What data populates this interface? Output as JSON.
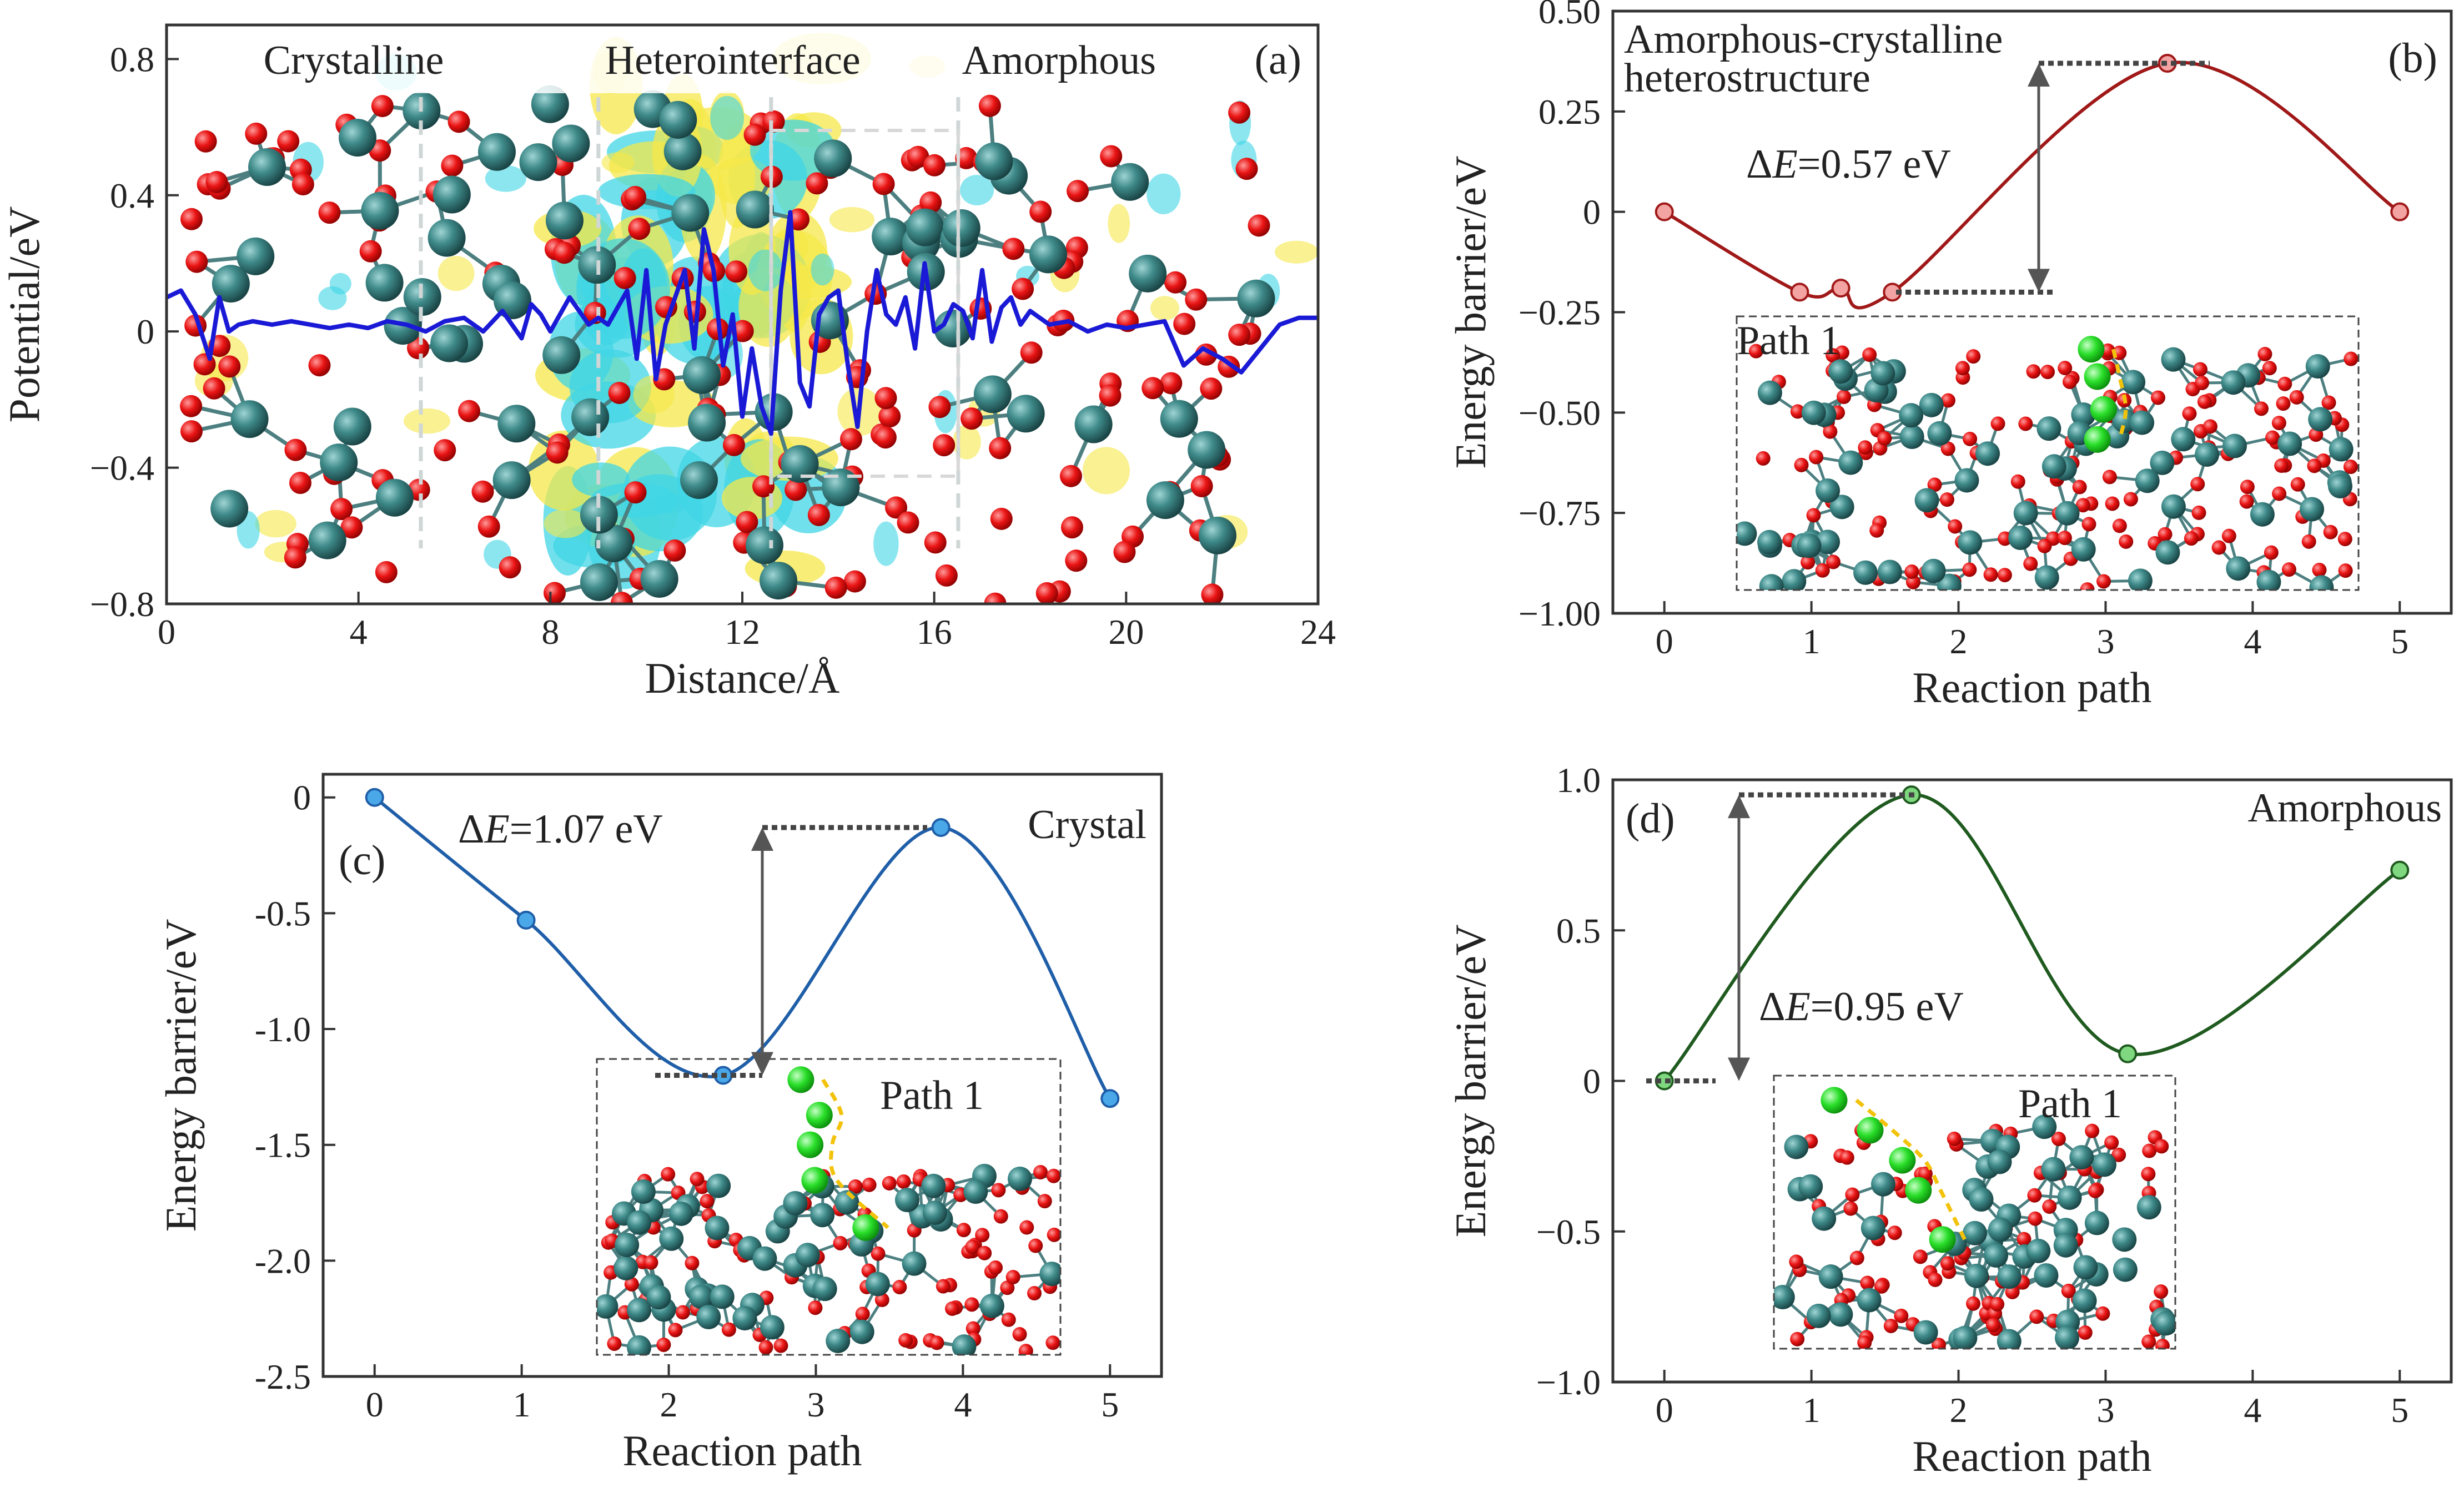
{
  "panels": [
    {
      "id": "a",
      "label": "(a)",
      "type": "line",
      "xlabel": "Distance/Å",
      "ylabel": "Potential/eV",
      "xlim": [
        0,
        24
      ],
      "ylim": [
        -0.8,
        0.9
      ],
      "xticks": [
        0,
        4,
        8,
        12,
        16,
        20,
        24
      ],
      "yticks": [
        0.8,
        0.4,
        0,
        -0.4,
        -0.8
      ],
      "ytick_labels": [
        "0.8",
        "0.4",
        "0",
        "−0.4",
        "−0.8"
      ],
      "region_labels": [
        "Crystalline",
        "Heterointerface",
        "Amorphous"
      ],
      "region_dividers": [
        5.3,
        9.0,
        12.6,
        16.5
      ],
      "series_color": "#1a1ad6",
      "x": [
        0,
        0.3,
        0.6,
        0.9,
        1.1,
        1.3,
        1.5,
        1.8,
        2.2,
        2.6,
        3.0,
        3.4,
        3.8,
        4.2,
        4.6,
        5.0,
        5.4,
        5.8,
        6.2,
        6.6,
        7.0,
        7.2,
        7.4,
        7.6,
        7.8,
        8.0,
        8.2,
        8.4,
        8.6,
        8.8,
        9.0,
        9.2,
        9.4,
        9.6,
        9.8,
        10.0,
        10.2,
        10.4,
        10.6,
        10.8,
        11.0,
        11.2,
        11.4,
        11.6,
        11.8,
        12.0,
        12.2,
        12.4,
        12.6,
        12.8,
        13.0,
        13.2,
        13.4,
        13.6,
        13.8,
        14.0,
        14.2,
        14.4,
        14.6,
        14.8,
        15.0,
        15.2,
        15.4,
        15.6,
        15.8,
        16.0,
        16.2,
        16.4,
        16.6,
        16.8,
        17.0,
        17.2,
        17.4,
        17.6,
        17.8,
        18.0,
        18.4,
        18.8,
        19.2,
        19.6,
        20.0,
        20.4,
        20.8,
        21.2,
        21.6,
        22.0,
        22.4,
        22.8,
        23.2,
        23.6,
        24.0
      ],
      "y": [
        0.1,
        0.12,
        0.05,
        -0.08,
        0.1,
        0.0,
        0.02,
        0.03,
        0.02,
        0.03,
        0.02,
        0.01,
        0.02,
        0.01,
        0.03,
        0.02,
        0.0,
        0.03,
        0.04,
        0.0,
        0.06,
        0.02,
        -0.02,
        0.08,
        0.05,
        0.0,
        0.05,
        0.1,
        0.06,
        0.02,
        0.04,
        0.02,
        0.07,
        0.12,
        -0.08,
        0.18,
        -0.14,
        0.02,
        0.1,
        0.18,
        -0.05,
        0.3,
        0.18,
        -0.1,
        0.05,
        -0.25,
        -0.05,
        -0.22,
        -0.3,
        0.12,
        0.35,
        -0.15,
        -0.22,
        0.05,
        0.1,
        0.12,
        -0.1,
        -0.28,
        0.0,
        0.18,
        0.05,
        0.02,
        0.1,
        -0.05,
        0.2,
        0.0,
        0.02,
        0.08,
        0.06,
        -0.02,
        0.18,
        -0.03,
        0.07,
        0.1,
        0.02,
        0.06,
        0.02,
        0.03,
        0.0,
        0.02,
        0.01,
        0.02,
        0.03,
        -0.1,
        -0.05,
        -0.08,
        -0.12,
        -0.05,
        0.02,
        0.04,
        0.04
      ]
    },
    {
      "id": "b",
      "label": "(b)",
      "type": "line",
      "xlabel": "Reaction path",
      "ylabel": "Energy barrier/eV",
      "xlim": [
        -0.35,
        5.35
      ],
      "ylim": [
        -1.0,
        0.5
      ],
      "xticks": [
        0,
        1,
        2,
        3,
        4,
        5
      ],
      "yticks": [
        0.5,
        0.25,
        0,
        -0.25,
        -0.5,
        -0.75,
        -1.0
      ],
      "ytick_labels": [
        "0.50",
        "0.25",
        "0",
        "−0.25",
        "−0.50",
        "−0.75",
        "−1.00"
      ],
      "legend": "Amorphous-crystalline heterostructure",
      "legend_lines": [
        "Amorphous-crystalline",
        "heterostructure"
      ],
      "delta_e": "0.57 eV",
      "inset_label": "Path 1",
      "series_color": "#a01818",
      "point_color": "#f4a3a3",
      "points_x": [
        0,
        0.92,
        1.2,
        1.55,
        3.42,
        5.0
      ],
      "points_y": [
        0.0,
        -0.2,
        -0.19,
        -0.2,
        0.37,
        0.0
      ],
      "barrier_low": -0.2,
      "barrier_high": 0.37
    },
    {
      "id": "c",
      "label": "(c)",
      "type": "line",
      "xlabel": "Reaction path",
      "ylabel": "Energy barrier/eV",
      "xlim": [
        -0.35,
        5.35
      ],
      "ylim": [
        -2.5,
        0.1
      ],
      "xticks": [
        0,
        1,
        2,
        3,
        4,
        5
      ],
      "yticks": [
        0,
        -0.5,
        -1.0,
        -1.5,
        -2.0,
        -2.5
      ],
      "ytick_labels": [
        "0",
        "-0.5",
        "-1.0",
        "-1.5",
        "-2.0",
        "-2.5"
      ],
      "legend": "Crystal",
      "delta_e": "1.07 eV",
      "inset_label": "Path 1",
      "series_color": "#1f5ea8",
      "point_color": "#4aa8e8",
      "points_x": [
        0,
        1.03,
        2.37,
        3.85,
        5.0
      ],
      "points_y": [
        0.0,
        -0.53,
        -1.2,
        -0.13,
        -1.3
      ],
      "barrier_low": -1.2,
      "barrier_high": -0.13
    },
    {
      "id": "d",
      "label": "(d)",
      "type": "line",
      "xlabel": "Reaction path",
      "ylabel": "Energy barrier/eV",
      "xlim": [
        -0.35,
        5.35
      ],
      "ylim": [
        -1.0,
        1.0
      ],
      "xticks": [
        0,
        1,
        2,
        3,
        4,
        5
      ],
      "yticks": [
        1.0,
        0.5,
        0,
        -0.5,
        -1.0
      ],
      "ytick_labels": [
        "1.0",
        "0.5",
        "0",
        "−0.5",
        "−1.0"
      ],
      "legend": "Amorphous",
      "delta_e": "0.95 eV",
      "inset_label": "Path 1",
      "series_color": "#1f5a1f",
      "point_color": "#7fd87f",
      "points_x": [
        0,
        1.68,
        3.15,
        5.0
      ],
      "points_y": [
        0.0,
        0.95,
        0.09,
        0.7
      ],
      "barrier_low": 0.0,
      "barrier_high": 0.95
    }
  ],
  "symbol_delta": "ΔE=",
  "colors": {
    "oxygen": "#e81010",
    "metal": "#2f6f6f",
    "hydrogen": "#2adf2a",
    "charge_yellow": "#f5e84a",
    "charge_cyan": "#40d6e6",
    "axis": "#333333"
  }
}
